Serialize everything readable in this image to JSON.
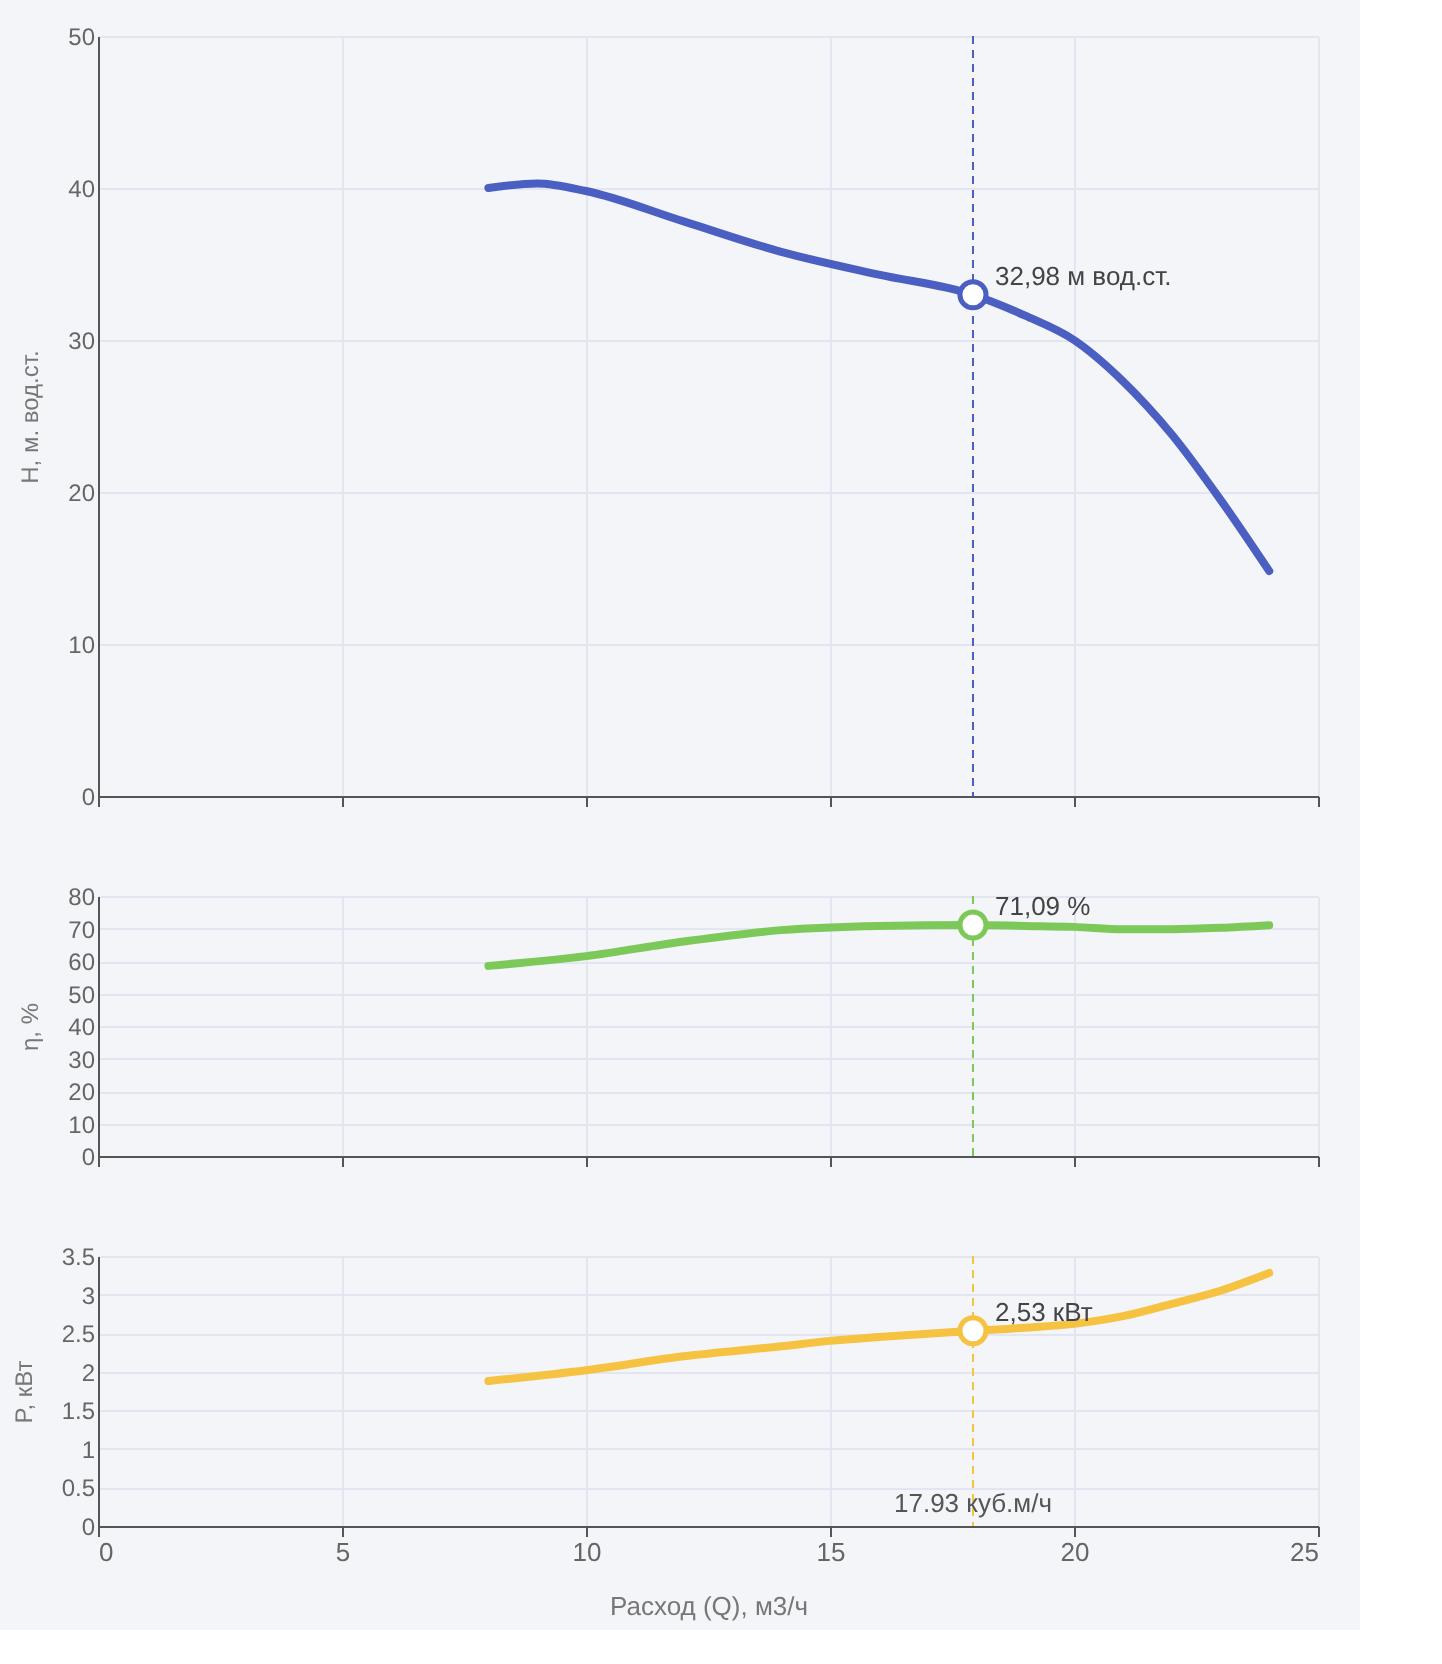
{
  "chart_data": [
    {
      "type": "line",
      "ylabel": "H, м. вод.ст.",
      "xlim": [
        0,
        25
      ],
      "xticks": [
        0,
        5,
        10,
        15,
        20,
        25
      ],
      "ylim": [
        0,
        50
      ],
      "yticks": [
        0,
        10,
        20,
        30,
        40,
        50
      ],
      "grid": true,
      "tick_labels": "y",
      "series": [
        {
          "color": "#4a5fc1",
          "x": [
            8,
            9,
            10,
            12,
            14,
            16,
            17.93,
            19,
            20,
            21,
            22,
            23,
            24
          ],
          "values": [
            40,
            40.3,
            39.8,
            37.8,
            35.8,
            34.3,
            32.98,
            31.6,
            30,
            27.3,
            23.8,
            19.5,
            14.8
          ]
        },
        {
          "type": "scatter",
          "marker": "circle",
          "color": "#4a5fc1",
          "x": [
            17.93
          ],
          "values": [
            32.98
          ]
        }
      ],
      "ref_lines": [
        {
          "axis": "x",
          "value": 17.93,
          "color": "#4a5fc1",
          "line_style": "dashed"
        }
      ],
      "annotations": [
        "32,98 м вод.ст."
      ]
    },
    {
      "type": "line",
      "ylabel": "η, %",
      "xlim": [
        0,
        25
      ],
      "xticks": [
        0,
        5,
        10,
        15,
        20,
        25
      ],
      "ylim": [
        0,
        80
      ],
      "yticks": [
        0,
        10,
        20,
        30,
        40,
        50,
        60,
        70,
        80
      ],
      "grid": true,
      "tick_labels": "y",
      "series": [
        {
          "color": "#7cc95a",
          "x": [
            8,
            10,
            12,
            14,
            16,
            17.93,
            19,
            20,
            21,
            22,
            23,
            24
          ],
          "values": [
            58.5,
            61.5,
            66,
            69.5,
            70.8,
            71.09,
            70.8,
            70.5,
            69.8,
            69.8,
            70.2,
            71
          ]
        },
        {
          "type": "scatter",
          "marker": "circle",
          "color": "#7cc95a",
          "x": [
            17.93
          ],
          "values": [
            71.09
          ]
        }
      ],
      "ref_lines": [
        {
          "axis": "x",
          "value": 17.93,
          "color": "#7cc95a",
          "line_style": "dashed"
        }
      ],
      "annotations": [
        "71,09 %"
      ]
    },
    {
      "type": "line",
      "xlabel": "Расход (Q), м3/ч",
      "ylabel": "P, кВт",
      "xlim": [
        0,
        25
      ],
      "xticks": [
        0,
        5,
        10,
        15,
        20,
        25
      ],
      "ylim": [
        0,
        3.5
      ],
      "yticks": [
        0,
        0.5,
        1,
        1.5,
        2,
        2.5,
        3,
        3.5
      ],
      "grid": true,
      "series": [
        {
          "color": "#f5c242",
          "x": [
            8,
            10,
            12,
            14,
            15,
            16,
            17.93,
            19,
            20,
            21,
            22,
            23,
            24
          ],
          "values": [
            1.88,
            2.02,
            2.2,
            2.33,
            2.4,
            2.45,
            2.53,
            2.57,
            2.62,
            2.72,
            2.88,
            3.05,
            3.28
          ]
        },
        {
          "type": "scatter",
          "marker": "circle",
          "color": "#f5c242",
          "x": [
            17.93
          ],
          "values": [
            2.53
          ]
        }
      ],
      "ref_lines": [
        {
          "axis": "x",
          "value": 17.93,
          "color": "#f5c242",
          "line_style": "dashed",
          "label": "17.93 куб.м/ч"
        }
      ],
      "annotations": [
        "2,53 кВт"
      ]
    }
  ]
}
